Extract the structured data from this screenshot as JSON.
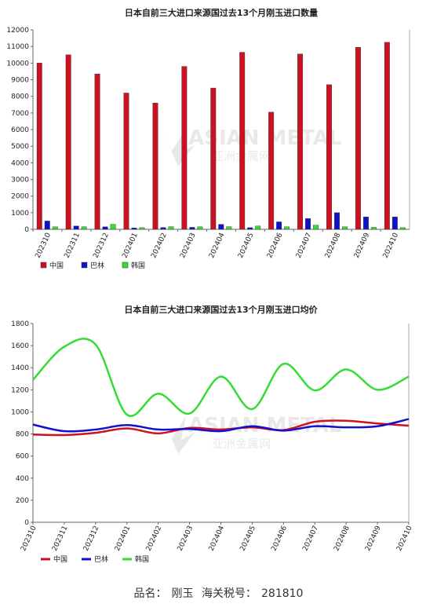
{
  "footer": {
    "name_label": "品名：",
    "name_value": "刚玉",
    "code_label": "海关税号：",
    "code_value": "281810"
  },
  "watermark": {
    "text_en": "ASIAN METAL",
    "text_cn": "亚洲金属网"
  },
  "colors": {
    "china": "#cc1122",
    "brazil": "#1111cc",
    "korea": "#33dd33"
  },
  "chart_data": [
    {
      "type": "bar",
      "title": "日本自前三大进口来源国过去13个月刚玉进口数量",
      "categories": [
        "202310",
        "202311",
        "202312",
        "202401",
        "202402",
        "202403",
        "202404",
        "202405",
        "202406",
        "202407",
        "202408",
        "202409",
        "202410"
      ],
      "series": [
        {
          "name": "中国",
          "values": [
            10000,
            10500,
            9350,
            8200,
            7600,
            9800,
            8500,
            10650,
            7050,
            10550,
            8700,
            10950,
            11250
          ]
        },
        {
          "name": "巴林",
          "values": [
            500,
            200,
            150,
            80,
            110,
            120,
            300,
            100,
            450,
            650,
            1000,
            750,
            750
          ]
        },
        {
          "name": "韩国",
          "values": [
            150,
            150,
            300,
            100,
            160,
            150,
            160,
            200,
            150,
            250,
            150,
            120,
            100
          ]
        }
      ],
      "ylim": [
        0,
        12000
      ],
      "yticks": [
        0,
        1000,
        2000,
        3000,
        4000,
        5000,
        6000,
        7000,
        8000,
        9000,
        10000,
        11000,
        12000
      ],
      "grid": false,
      "legend": "bottom-left"
    },
    {
      "type": "line",
      "title": "日本自前三大进口来源国过去13个月刚玉进口均价",
      "categories": [
        "202310",
        "202311",
        "202312",
        "202401",
        "202402",
        "202403",
        "202404",
        "202405",
        "202406",
        "202407",
        "202408",
        "202409",
        "202410"
      ],
      "series": [
        {
          "name": "中国",
          "values": [
            795,
            790,
            810,
            850,
            805,
            855,
            840,
            860,
            835,
            910,
            920,
            895,
            875
          ]
        },
        {
          "name": "巴林",
          "values": [
            885,
            825,
            840,
            880,
            840,
            845,
            825,
            870,
            830,
            870,
            860,
            870,
            935
          ]
        },
        {
          "name": "韩国",
          "values": [
            1290,
            1590,
            1610,
            975,
            1165,
            985,
            1320,
            1025,
            1435,
            1195,
            1385,
            1200,
            1320
          ]
        }
      ],
      "ylim": [
        0,
        1800
      ],
      "yticks": [
        0,
        200,
        400,
        600,
        800,
        1000,
        1200,
        1400,
        1600,
        1800
      ],
      "grid": false,
      "legend": "bottom-left"
    }
  ]
}
